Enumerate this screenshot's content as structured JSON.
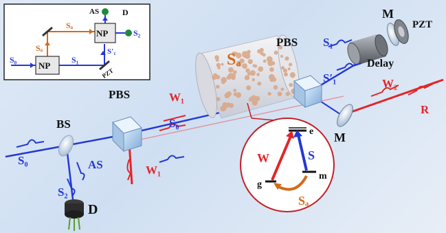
{
  "inset": {
    "s0": "S₀",
    "s1": "S₁",
    "s1p": "S′₁",
    "sa_top": "Sₐ",
    "sa_left": "Sₐ",
    "np_left": "NP",
    "np_right": "NP",
    "pzt": "PZT",
    "as": "AS",
    "d": "D",
    "s2": "S₂"
  },
  "labels": {
    "bs": "BS",
    "pbs_left": "PBS",
    "pbs_right": "PBS",
    "m_top": "M",
    "m_bottom": "M",
    "pzt": "PZT",
    "delay": "Delay",
    "d_main": "D",
    "as": "AS",
    "s2": "S₂",
    "s0_main": "S₀",
    "s0_mid": "S₀",
    "w1_top": "W₁",
    "w1_bottom": "W₁",
    "sa_cell": "Sₐ",
    "s1_top": "S₁",
    "s1p_main": "S′₁",
    "w2": "W₂",
    "r": "R"
  },
  "levels": {
    "e": "e",
    "g": "g",
    "m": "m",
    "w": "W",
    "s": "S",
    "sa": "Sₐ"
  },
  "colors": {
    "blue": "#2438d4",
    "red": "#e0262a",
    "orange": "#d46a1a",
    "green": "#1f8a3a"
  }
}
